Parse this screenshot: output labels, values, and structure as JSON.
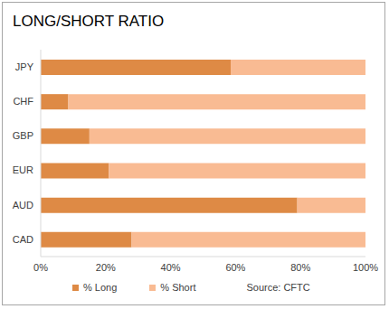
{
  "chart_data": {
    "type": "bar",
    "title": "LONG/SHORT RATIO",
    "orientation": "horizontal",
    "stacked": true,
    "categories": [
      "JPY",
      "CHF",
      "GBP",
      "EUR",
      "AUD",
      "CAD"
    ],
    "series": [
      {
        "name": "% Long",
        "color": "#DE8A45",
        "values": [
          58.5,
          8.5,
          15,
          21,
          79,
          28
        ]
      },
      {
        "name": "% Short",
        "color": "#F9BB93",
        "values": [
          41.5,
          91.5,
          85,
          79,
          21,
          72
        ]
      }
    ],
    "xlim": [
      0,
      100
    ],
    "xticks": [
      {
        "value": 0,
        "label": "0%"
      },
      {
        "value": 20,
        "label": "20%"
      },
      {
        "value": 40,
        "label": "40%"
      },
      {
        "value": 60,
        "label": "60%"
      },
      {
        "value": 80,
        "label": "80%"
      },
      {
        "value": 100,
        "label": "100%"
      }
    ],
    "grid": false,
    "legend": "bottom",
    "annotations": [
      "Source: CFTC"
    ]
  }
}
